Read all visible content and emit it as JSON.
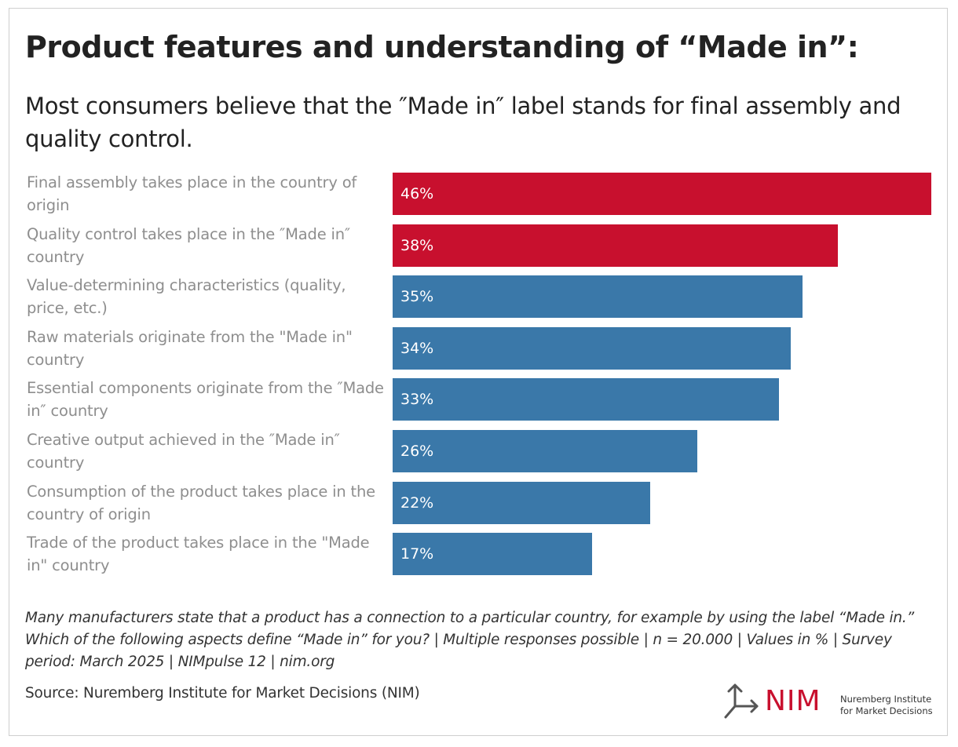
{
  "title": "Product features and understanding of “Made in”:",
  "subtitle": "Most consumers believe that the ″Made in″ label stands for final assembly and quality control.",
  "chart_data": {
    "type": "bar",
    "orientation": "horizontal",
    "categories": [
      "Final assembly takes place in the country of origin",
      "Quality control takes place in the ″Made in″ country",
      "Value-determining characteristics (quality, price, etc.)",
      "Raw materials originate from the \"Made in\" country",
      "Essential components originate from the ″Made in″ country",
      "Creative output achieved in the ″Made in″ country",
      "Consumption of the product takes place in the country of origin",
      "Trade of the product takes place in the \"Made in\" country"
    ],
    "values": [
      46,
      38,
      35,
      34,
      33,
      26,
      22,
      17
    ],
    "value_labels": [
      "46%",
      "38%",
      "35%",
      "34%",
      "33%",
      "26%",
      "22%",
      "17%"
    ],
    "colors": [
      "#c8102e",
      "#c8102e",
      "#3a78a9",
      "#3a78a9",
      "#3a78a9",
      "#3a78a9",
      "#3a78a9",
      "#3a78a9"
    ],
    "xlim": [
      0,
      46
    ],
    "title": "Product features and understanding of “Made in”:",
    "xlabel": "",
    "ylabel": "",
    "grid": false
  },
  "note": "Many manufacturers state that a product has a connection to a particular country, for example by using the label “Made in.” Which of the following aspects define “Made in” for you? | Multiple responses possible | n = 20.000 | Values in % | Survey period: March 2025 | NIMpulse 12 | nim.org",
  "source": "Source: Nuremberg Institute for Market Decisions (NIM)",
  "logo": {
    "text": "NIM",
    "line1": "Nuremberg Institute",
    "line2": "for Market Decisions",
    "icon": "arrow-branch-icon"
  },
  "colors": {
    "highlight": "#c8102e",
    "primary": "#3a78a9",
    "label": "#8e8e8e"
  }
}
